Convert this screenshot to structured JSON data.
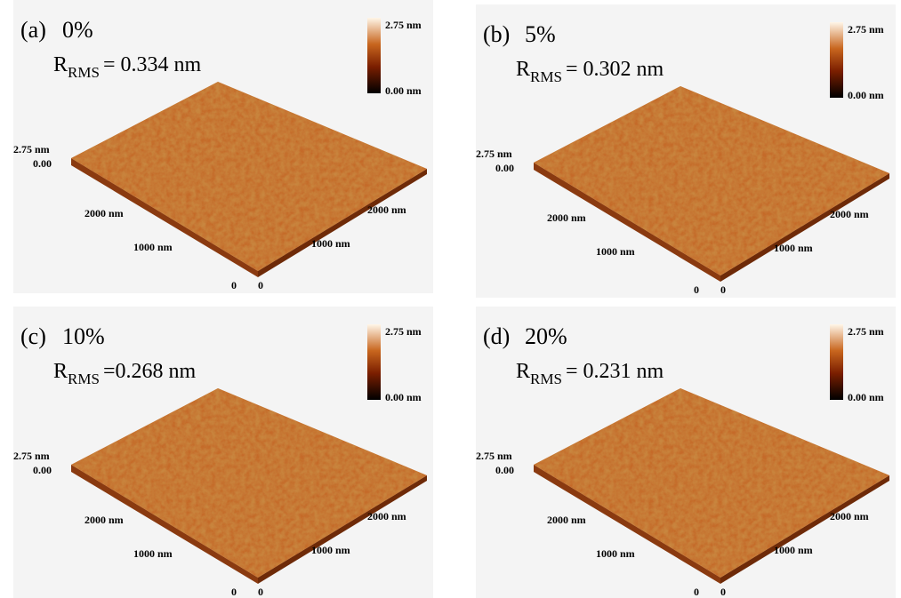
{
  "panels": [
    {
      "label": "(a)",
      "doping": "0%",
      "rms_symbol": "R",
      "rms_subscript": "RMS",
      "rms_value": "= 0.334 nm",
      "colorbar_max": "2.75 nm",
      "colorbar_min": "0.00 nm",
      "z_max": "2.75 nm",
      "z_min": "0.00",
      "left_axis": [
        "2000 nm",
        "1000 nm",
        "0"
      ],
      "right_axis": [
        "2000 nm",
        "1000 nm",
        "0"
      ]
    },
    {
      "label": "(b)",
      "doping": "5%",
      "rms_symbol": "R",
      "rms_subscript": "RMS",
      "rms_value": "= 0.302 nm",
      "colorbar_max": "2.75 nm",
      "colorbar_min": "0.00 nm",
      "z_max": "2.75 nm",
      "z_min": "0.00",
      "left_axis": [
        "2000 nm",
        "1000 nm",
        "0"
      ],
      "right_axis": [
        "2000 nm",
        "1000 nm",
        "0"
      ]
    },
    {
      "label": "(c)",
      "doping": "10%",
      "rms_symbol": "R",
      "rms_subscript": "RMS",
      "rms_value": "=0.268 nm",
      "colorbar_max": "2.75 nm",
      "colorbar_min": "0.00 nm",
      "z_max": "2.75 nm",
      "z_min": "0.00",
      "left_axis": [
        "2000 nm",
        "1000 nm",
        "0"
      ],
      "right_axis": [
        "2000 nm",
        "1000 nm",
        "0"
      ]
    },
    {
      "label": "(d)",
      "doping": "20%",
      "rms_symbol": "R",
      "rms_subscript": "RMS",
      "rms_value": "= 0.231 nm",
      "colorbar_max": "2.75 nm",
      "colorbar_min": "0.00 nm",
      "z_max": "2.75 nm",
      "z_min": "0.00",
      "left_axis": [
        "2000 nm",
        "1000 nm",
        "0"
      ],
      "right_axis": [
        "2000 nm",
        "1000 nm",
        "0"
      ]
    }
  ]
}
